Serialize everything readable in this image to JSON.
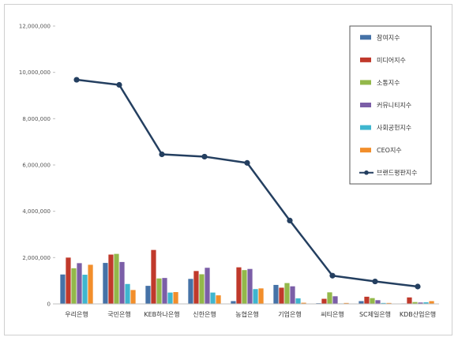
{
  "chart_data": {
    "type": "bar",
    "categories": [
      "우리은행",
      "국민은행",
      "KEB하나은행",
      "신한은행",
      "농협은행",
      "기업은행",
      "씨티은행",
      "SC제일은행",
      "KDB산업은행"
    ],
    "series": [
      {
        "name": "참여지수",
        "type": "bar",
        "color": "#4572a7",
        "values": [
          1270000,
          1770000,
          780000,
          1080000,
          120000,
          820000,
          30000,
          120000,
          20000
        ]
      },
      {
        "name": "미디어지수",
        "type": "bar",
        "color": "#c0392b",
        "values": [
          2000000,
          2130000,
          2330000,
          1420000,
          1580000,
          700000,
          220000,
          310000,
          280000
        ]
      },
      {
        "name": "소통지수",
        "type": "bar",
        "color": "#93b84a",
        "values": [
          1540000,
          2160000,
          1100000,
          1280000,
          1460000,
          900000,
          500000,
          250000,
          80000
        ]
      },
      {
        "name": "커뮤니티지수",
        "type": "bar",
        "color": "#7b5ea7",
        "values": [
          1760000,
          1810000,
          1120000,
          1560000,
          1510000,
          760000,
          330000,
          160000,
          60000
        ]
      },
      {
        "name": "사회공헌지수",
        "type": "bar",
        "color": "#3fb6cf",
        "values": [
          1260000,
          860000,
          490000,
          490000,
          640000,
          240000,
          20000,
          40000,
          70000
        ]
      },
      {
        "name": "CEO지수",
        "type": "bar",
        "color": "#f28e2b",
        "values": [
          1690000,
          600000,
          510000,
          370000,
          670000,
          50000,
          40000,
          40000,
          120000
        ]
      },
      {
        "name": "브랜드평판지수",
        "type": "line",
        "color": "#243f60",
        "values": [
          9680000,
          9460000,
          6460000,
          6360000,
          6090000,
          3600000,
          1220000,
          970000,
          750000
        ]
      }
    ],
    "yticks": [
      "0",
      "2,000,000",
      "4,000,000",
      "6,000,000",
      "8,000,000",
      "10,000,000",
      "12,000,000"
    ],
    "ylim": [
      0,
      12000000
    ],
    "legend_position": "top-right",
    "grid": false
  }
}
